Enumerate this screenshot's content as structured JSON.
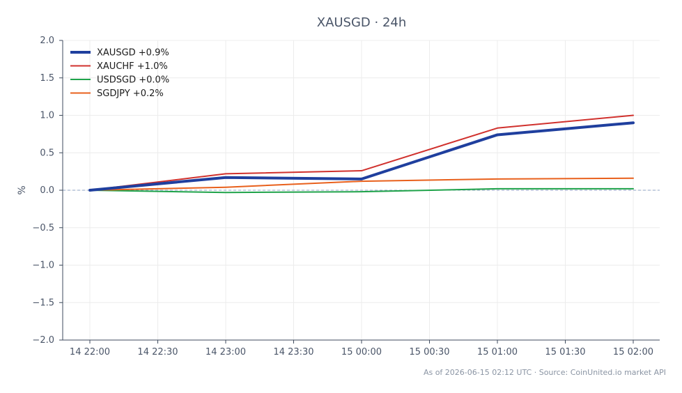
{
  "chart_data": {
    "type": "line",
    "title": "XAUSGD · 24h",
    "xlabel": "",
    "ylabel": "%",
    "x": [
      "14 22:00",
      "14 23:00",
      "15 00:00",
      "15 01:00",
      "15 02:00"
    ],
    "x_ticks": [
      "14 22:00",
      "14 22:30",
      "14 23:00",
      "14 23:30",
      "15 00:00",
      "15 00:30",
      "15 01:00",
      "15 01:30",
      "15 02:00"
    ],
    "ylim": [
      -2.0,
      2.0
    ],
    "y_ticks": [
      "2.0",
      "1.5",
      "1.0",
      "0.5",
      "0.0",
      "−0.5",
      "−1.0",
      "−1.5",
      "−2.0"
    ],
    "y_tick_values": [
      2.0,
      1.5,
      1.0,
      0.5,
      0.0,
      -0.5,
      -1.0,
      -1.5,
      -2.0
    ],
    "grid": true,
    "zero_line": "dashed",
    "legend_position": "top-left",
    "series": [
      {
        "name": "XAUSGD +0.9%",
        "color": "#1f3f9e",
        "emphasis": true,
        "values": [
          0.0,
          0.17,
          0.15,
          0.74,
          0.9
        ]
      },
      {
        "name": "XAUCHF +1.0%",
        "color": "#d0312d",
        "emphasis": false,
        "values": [
          0.0,
          0.22,
          0.26,
          0.83,
          1.0
        ]
      },
      {
        "name": "USDSGD +0.0%",
        "color": "#1fa34a",
        "emphasis": false,
        "values": [
          0.0,
          -0.03,
          -0.02,
          0.02,
          0.02
        ]
      },
      {
        "name": "SGDJPY +0.2%",
        "color": "#e8601c",
        "emphasis": false,
        "values": [
          0.0,
          0.04,
          0.12,
          0.15,
          0.16
        ]
      }
    ]
  },
  "footer": "As of 2026-06-15 02:12 UTC · Source: CoinUnited.io market API"
}
